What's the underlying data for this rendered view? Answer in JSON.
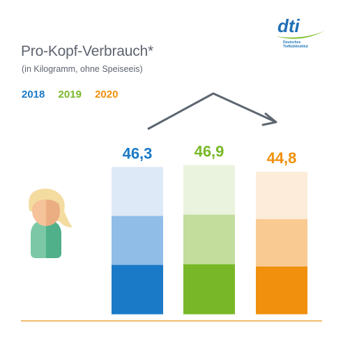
{
  "logo": {
    "text": "dti",
    "subtext_line1": "Deutsches",
    "subtext_line2": "Tiefkühlinstitut",
    "color": "#1f6fb5",
    "swoosh_color": "#7bbf2a"
  },
  "chart_data": {
    "type": "bar",
    "title": "Pro-Kopf-Verbrauch*",
    "subtitle": "(in Kilogramm, ohne Speiseeis)",
    "categories": [
      "2018",
      "2019",
      "2020"
    ],
    "values": [
      46.3,
      46.9,
      44.8
    ],
    "value_labels": [
      "46,3",
      "46,9",
      "44,8"
    ],
    "legend_placement": "top-left",
    "trend_arrow": "up-then-down",
    "colors": {
      "2018": {
        "label": "#1b7ac7",
        "dark": "#1b7ac7",
        "mid": "#8fbde8",
        "light": "#dde9f7"
      },
      "2019": {
        "label": "#78b828",
        "dark": "#78b828",
        "mid": "#c2dd9c",
        "light": "#eaf3dd"
      },
      "2020": {
        "label": "#f0900d",
        "dark": "#f0900d",
        "mid": "#f9cb93",
        "light": "#fdecd9"
      }
    },
    "baseline_color": "#e8a640",
    "arrow_color": "#5d6670"
  }
}
